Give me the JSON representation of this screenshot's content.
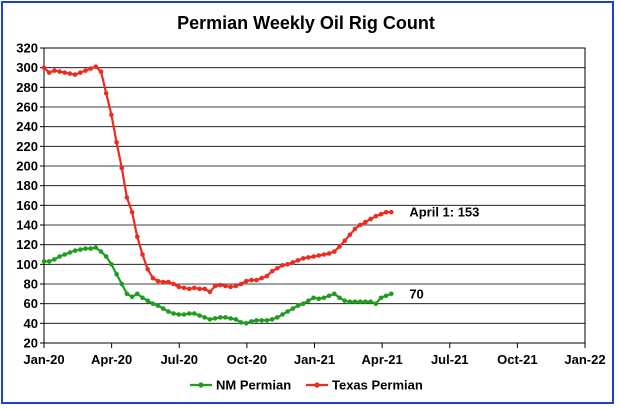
{
  "chart_data": {
    "type": "line",
    "title": "Permian Weekly Oil Rig Count",
    "xlabel": "",
    "ylabel": "",
    "ylim": [
      20,
      320
    ],
    "yticks": [
      "20",
      "40",
      "60",
      "80",
      "100",
      "120",
      "140",
      "160",
      "180",
      "200",
      "220",
      "240",
      "260",
      "280",
      "300",
      "320"
    ],
    "xticks": [
      "Jan-20",
      "Apr-20",
      "Jul-20",
      "Oct-20",
      "Jan-21",
      "Apr-21",
      "Jul-21",
      "Oct-21",
      "Jan-22"
    ],
    "xlim_months": [
      0,
      24
    ],
    "grid": "horizontal",
    "legend": "bottom",
    "annotations": [
      {
        "text": "April 1: 153",
        "series": "Texas Permian"
      },
      {
        "text": "70",
        "series": "NM Permian"
      }
    ],
    "series": [
      {
        "name": "NM Permian",
        "color": "#1e9e1e",
        "values": [
          103,
          103,
          105,
          108,
          110,
          112,
          114,
          115,
          116,
          116,
          117,
          113,
          108,
          100,
          90,
          80,
          70,
          67,
          70,
          66,
          63,
          60,
          58,
          55,
          52,
          50,
          49,
          49,
          50,
          50,
          48,
          46,
          44,
          45,
          46,
          46,
          45,
          44,
          41,
          40,
          42,
          43,
          43,
          43,
          44,
          46,
          49,
          52,
          55,
          58,
          60,
          63,
          66,
          65,
          66,
          68,
          70,
          66,
          63,
          62,
          62,
          62,
          62,
          62,
          60,
          66,
          68,
          70
        ]
      },
      {
        "name": "Texas Permian",
        "color": "#f02a1e",
        "values": [
          300,
          295,
          297,
          296,
          295,
          294,
          293,
          295,
          297,
          299,
          301,
          296,
          274,
          252,
          224,
          198,
          168,
          153,
          128,
          110,
          95,
          86,
          83,
          82,
          82,
          80,
          77,
          76,
          75,
          76,
          75,
          75,
          72,
          78,
          79,
          78,
          77,
          78,
          80,
          83,
          84,
          84,
          86,
          88,
          93,
          96,
          99,
          100,
          102,
          104,
          106,
          107,
          108,
          109,
          110,
          111,
          113,
          118,
          124,
          130,
          136,
          140,
          143,
          146,
          149,
          151,
          153,
          153
        ]
      }
    ]
  }
}
